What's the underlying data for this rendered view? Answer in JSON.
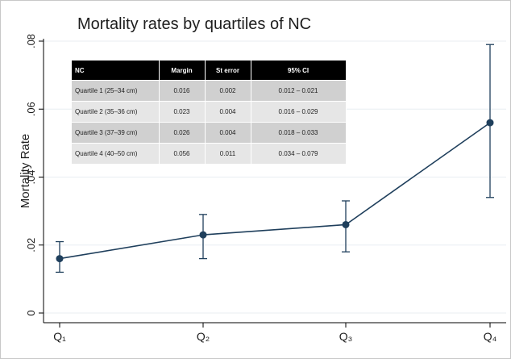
{
  "chart_data": {
    "type": "line",
    "title": "Mortality rates by quartiles of NC",
    "ylabel": "Mortality Rate",
    "xlabel": "",
    "categories": [
      "Q₁",
      "Q₂",
      "Q₃",
      "Q₄"
    ],
    "values": [
      0.016,
      0.023,
      0.026,
      0.056
    ],
    "ci_low": [
      0.012,
      0.016,
      0.018,
      0.034
    ],
    "ci_high": [
      0.021,
      0.029,
      0.033,
      0.079
    ],
    "ylim": [
      0,
      0.08
    ],
    "yticks": [
      0,
      0.02,
      0.04,
      0.06,
      0.08
    ],
    "ytick_labels": [
      "0",
      ".02",
      ".04",
      ".06",
      ".08"
    ],
    "grid": true,
    "colors": {
      "line": "#1f3f5c",
      "marker": "#1f3f5c",
      "grid": "#e8eef2",
      "axis": "#000000"
    }
  },
  "table": {
    "headers": [
      "NC",
      "Margin",
      "St error",
      "95% CI"
    ],
    "rows": [
      [
        "Quartile 1 (25–34 cm)",
        "0.016",
        "0.002",
        "0.012 – 0.021"
      ],
      [
        "Quartile 2 (35–36 cm)",
        "0.023",
        "0.004",
        "0.016 – 0.029"
      ],
      [
        "Quartile 3 (37–39 cm)",
        "0.026",
        "0.004",
        "0.018 – 0.033"
      ],
      [
        "Quartile 4 (40–50 cm)",
        "0.056",
        "0.011",
        "0.034 – 0.079"
      ]
    ]
  }
}
